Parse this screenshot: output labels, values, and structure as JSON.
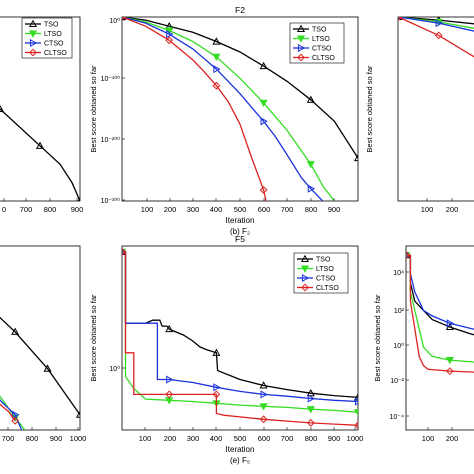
{
  "colors": {
    "TSO": "#000000",
    "LTSO": "#33dd22",
    "CTSO": "#1a33dd",
    "CLTSO": "#dd2222"
  },
  "chart_data": [
    {
      "type": "line",
      "position": "top-left (cropped)",
      "xlabel": "",
      "ylabel": "",
      "caption": "",
      "xticks": [
        "0",
        "700",
        "800",
        "900"
      ],
      "xlim": [
        600,
        900
      ],
      "yscale": "log",
      "ylim": [
        -300,
        0
      ],
      "legend": [
        "TSO",
        "LTSO",
        "CTSO",
        "CLTSO"
      ],
      "legend_position": "top-left",
      "series": [
        {
          "name": "TSO",
          "x": [
            600,
            700,
            800,
            850,
            880,
            900
          ],
          "y": [
            -100,
            -150,
            -210,
            -240,
            -270,
            -300
          ]
        },
        {
          "name": "LTSO",
          "x": [
            600,
            630,
            650,
            670,
            690
          ],
          "y": [
            -200,
            -220,
            -250,
            -280,
            -300
          ]
        },
        {
          "name": "CTSO",
          "x": [
            600,
            620,
            640,
            660
          ],
          "y": [
            -240,
            -260,
            -285,
            -300
          ]
        },
        {
          "name": "CLTSO",
          "x": [],
          "y": []
        }
      ]
    },
    {
      "type": "line",
      "position": "top-middle",
      "title": "F2",
      "xlabel": "Iteration",
      "ylabel": "Best score obtianed so far",
      "caption": "(b) F₂",
      "xticks": [
        "100",
        "200",
        "300",
        "400",
        "500",
        "600",
        "700",
        "800",
        "900"
      ],
      "xlim": [
        0,
        1000
      ],
      "yscale": "log",
      "yticks": [
        "10⁰",
        "10⁻¹⁰⁰",
        "10⁻²⁰⁰",
        "10⁻³⁰⁰"
      ],
      "ylim": [
        -300,
        0
      ],
      "legend": [
        "TSO",
        "LTSO",
        "CTSO",
        "CLTSO"
      ],
      "legend_position": "top-right",
      "series": [
        {
          "name": "TSO",
          "x": [
            1,
            100,
            200,
            300,
            400,
            500,
            600,
            700,
            800,
            900,
            950,
            1000
          ],
          "y": [
            0,
            -5,
            -15,
            -25,
            -40,
            -57,
            -80,
            -105,
            -135,
            -170,
            -200,
            -230
          ]
        },
        {
          "name": "LTSO",
          "x": [
            1,
            100,
            200,
            300,
            400,
            500,
            600,
            700,
            800,
            850,
            900
          ],
          "y": [
            0,
            -8,
            -22,
            -40,
            -65,
            -100,
            -140,
            -185,
            -240,
            -275,
            -300
          ]
        },
        {
          "name": "CTSO",
          "x": [
            1,
            100,
            200,
            300,
            400,
            500,
            600,
            650,
            700,
            760,
            800,
            850
          ],
          "y": [
            0,
            -10,
            -28,
            -52,
            -85,
            -125,
            -170,
            -195,
            -225,
            -262,
            -280,
            -300
          ]
        },
        {
          "name": "CLTSO",
          "x": [
            1,
            100,
            200,
            300,
            350,
            400,
            450,
            500,
            550,
            600,
            610
          ],
          "y": [
            0,
            -15,
            -38,
            -70,
            -90,
            -112,
            -138,
            -175,
            -230,
            -282,
            -300
          ]
        }
      ]
    },
    {
      "type": "line",
      "position": "top-right (cropped)",
      "xlabel": "",
      "ylabel": "Best score obtianed so far",
      "caption": "",
      "xticks": [
        "100",
        "200"
      ],
      "xlim": [
        0,
        300
      ],
      "yscale": "log",
      "ylim": [
        -300,
        0
      ],
      "legend": [],
      "legend_position": "top-right",
      "series": [
        {
          "name": "TSO",
          "x": [
            1,
            100,
            200,
            300
          ],
          "y": [
            0,
            -5,
            -12,
            -22
          ]
        },
        {
          "name": "LTSO",
          "x": [
            1,
            100,
            200,
            300
          ],
          "y": [
            0,
            -8,
            -20,
            -35
          ]
        },
        {
          "name": "CTSO",
          "x": [
            1,
            100,
            200,
            300
          ],
          "y": [
            0,
            -10,
            -25,
            -45
          ]
        },
        {
          "name": "CLTSO",
          "x": [
            1,
            100,
            200,
            250,
            300
          ],
          "y": [
            0,
            -30,
            -70,
            -100,
            -135
          ]
        }
      ]
    },
    {
      "type": "line",
      "position": "bottom-left (cropped)",
      "xlabel": "",
      "ylabel": "",
      "caption": "",
      "xticks": [
        "700",
        "800",
        "900",
        "1000"
      ],
      "xlim": [
        630,
        1000
      ],
      "yscale": "log",
      "ylim": [
        -300,
        0
      ],
      "legend": [],
      "legend_position": "top-left",
      "series": [
        {
          "name": "TSO",
          "x": [
            630,
            700,
            800,
            900,
            1000
          ],
          "y": [
            -60,
            -90,
            -140,
            -200,
            -275
          ]
        },
        {
          "name": "LTSO",
          "x": [
            630,
            700,
            760,
            800,
            830
          ],
          "y": [
            -180,
            -210,
            -250,
            -280,
            -300
          ]
        },
        {
          "name": "CTSO",
          "x": [
            630,
            700,
            760,
            800,
            820
          ],
          "y": [
            -190,
            -220,
            -255,
            -275,
            -300
          ]
        },
        {
          "name": "CLTSO",
          "x": [
            630,
            700,
            780,
            800
          ],
          "y": [
            -200,
            -235,
            -270,
            -285
          ]
        }
      ]
    },
    {
      "type": "line",
      "position": "bottom-middle",
      "title": "F5",
      "xlabel": "Iteration",
      "ylabel": "Best score obtianed so far",
      "caption": "(e) F₅",
      "xticks": [
        "100",
        "200",
        "300",
        "400",
        "500",
        "600",
        "700",
        "800",
        "900",
        "1000"
      ],
      "xlim": [
        0,
        1000
      ],
      "yscale": "log",
      "yticks": [
        "10⁰"
      ],
      "ylim": [
        -1.3,
        1.8
      ],
      "legend": [
        "TSO",
        "LTSO",
        "CTSO",
        "CLTSO"
      ],
      "legend_position": "top-right",
      "series": [
        {
          "name": "TSO",
          "x": [
            1,
            15,
            15,
            100,
            130,
            160,
            170,
            190,
            200,
            230,
            260,
            300,
            330,
            360,
            400,
            405,
            500,
            600,
            700,
            800,
            900,
            1000
          ],
          "y": [
            1.7,
            1.7,
            0.5,
            0.5,
            0.55,
            0.55,
            0.45,
            0.45,
            0.4,
            0.35,
            0.3,
            0.2,
            0.1,
            0.05,
            0.0,
            -0.3,
            -0.45,
            -0.55,
            -0.62,
            -0.68,
            -0.72,
            -0.75
          ]
        },
        {
          "name": "LTSO",
          "x": [
            1,
            15,
            15,
            50,
            100,
            200,
            300,
            400,
            500,
            600,
            700,
            800,
            900,
            1000
          ],
          "y": [
            1.7,
            1.7,
            -0.4,
            -0.6,
            -0.78,
            -0.8,
            -0.82,
            -0.85,
            -0.88,
            -0.9,
            -0.92,
            -0.95,
            -0.97,
            -1.0
          ]
        },
        {
          "name": "CTSO",
          "x": [
            1,
            15,
            15,
            150,
            150,
            200,
            300,
            400,
            500,
            600,
            700,
            800,
            900,
            1000
          ],
          "y": [
            1.7,
            1.7,
            0.5,
            0.5,
            -0.45,
            -0.45,
            -0.5,
            -0.58,
            -0.65,
            -0.7,
            -0.73,
            -0.77,
            -0.8,
            -0.82
          ]
        },
        {
          "name": "CLTSO",
          "x": [
            1,
            15,
            15,
            50,
            50,
            400,
            400,
            430,
            500,
            600,
            700,
            800,
            900,
            1000
          ],
          "y": [
            1.7,
            1.7,
            0.0,
            0.0,
            -0.7,
            -0.7,
            -1.02,
            -1.05,
            -1.08,
            -1.12,
            -1.15,
            -1.18,
            -1.2,
            -1.22
          ]
        }
      ]
    },
    {
      "type": "line",
      "position": "bottom-right (cropped)",
      "xlabel": "",
      "ylabel": "Best score obtianed so far",
      "caption": "",
      "xticks": [
        "100",
        "200"
      ],
      "xlim": [
        0,
        260
      ],
      "yscale": "log",
      "yticks": [
        "10⁴",
        "10²",
        "10⁰",
        "10⁻²",
        "10⁻⁴"
      ],
      "ylim": [
        -5,
        5
      ],
      "legend": [],
      "legend_position": "top-right",
      "series": [
        {
          "name": "TSO",
          "x": [
            1,
            10,
            10,
            20,
            40,
            60,
            80,
            100,
            150,
            200,
            260
          ],
          "y": [
            4.5,
            4.5,
            3.0,
            2.0,
            1.5,
            1.0,
            0.8,
            0.6,
            0.2,
            0.0,
            -0.3
          ]
        },
        {
          "name": "LTSO",
          "x": [
            1,
            10,
            10,
            20,
            30,
            40,
            60,
            100,
            150,
            200,
            260
          ],
          "y": [
            4.5,
            4.5,
            2.5,
            1.5,
            0.5,
            -0.5,
            -1.0,
            -1.2,
            -1.3,
            -1.4,
            -1.5
          ]
        },
        {
          "name": "CTSO",
          "x": [
            1,
            10,
            10,
            20,
            40,
            60,
            80,
            100,
            150,
            200,
            260
          ],
          "y": [
            4.5,
            4.5,
            3.5,
            2.5,
            1.5,
            1.2,
            1.0,
            0.8,
            0.5,
            0.3,
            0.1
          ]
        },
        {
          "name": "CLTSO",
          "x": [
            1,
            10,
            10,
            20,
            30,
            40,
            50,
            100,
            150,
            200,
            260
          ],
          "y": [
            4.5,
            4.5,
            2.0,
            0.5,
            -1.0,
            -1.5,
            -1.7,
            -1.8,
            -1.85,
            -1.9,
            -1.95
          ]
        }
      ]
    }
  ]
}
